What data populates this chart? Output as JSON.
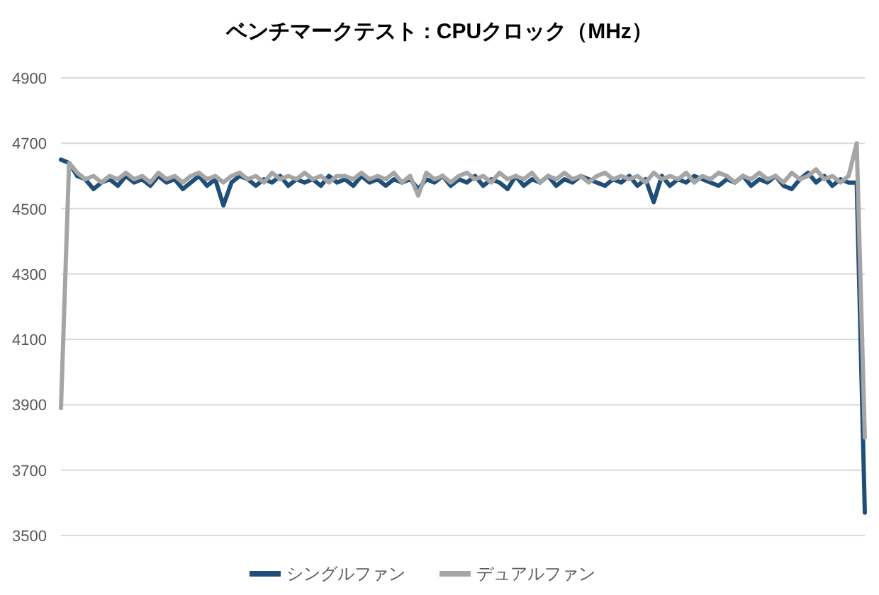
{
  "chart_data": {
    "type": "line",
    "title": "ベンチマークテスト : CPUクロック（MHz）",
    "categories": [
      null,
      null,
      null,
      null,
      null,
      null,
      null,
      null,
      null,
      null,
      null,
      null,
      null,
      null,
      null,
      null,
      null,
      null,
      null,
      null,
      null,
      null,
      null,
      null,
      null,
      null,
      null,
      null,
      null,
      null,
      null,
      null,
      null,
      null,
      null,
      null,
      null,
      null,
      null,
      null,
      null,
      null,
      null,
      null,
      null,
      null,
      null,
      null,
      null,
      null,
      null,
      null,
      null,
      null,
      null,
      null,
      null,
      null,
      null,
      null,
      null,
      null,
      null,
      null,
      null,
      null,
      null,
      null,
      null,
      null,
      null,
      null,
      null,
      null,
      null,
      null,
      null,
      null,
      null,
      null,
      null,
      null,
      null,
      null,
      null,
      null,
      null,
      null,
      null,
      null,
      null,
      null,
      null,
      null,
      null,
      null,
      null,
      null,
      null,
      null
    ],
    "series": [
      {
        "name": "シングルファン",
        "color": "#1f4e79",
        "values": [
          4650,
          4640,
          4600,
          4590,
          4560,
          4580,
          4590,
          4570,
          4600,
          4580,
          4590,
          4570,
          4600,
          4580,
          4590,
          4560,
          4580,
          4600,
          4570,
          4590,
          4510,
          4580,
          4600,
          4590,
          4570,
          4590,
          4580,
          4600,
          4570,
          4590,
          4580,
          4590,
          4570,
          4600,
          4580,
          4590,
          4570,
          4600,
          4580,
          4590,
          4570,
          4590,
          4580,
          4590,
          4560,
          4590,
          4580,
          4600,
          4570,
          4590,
          4580,
          4600,
          4570,
          4590,
          4580,
          4560,
          4600,
          4570,
          4590,
          4580,
          4600,
          4570,
          4590,
          4580,
          4600,
          4590,
          4580,
          4570,
          4590,
          4580,
          4600,
          4570,
          4590,
          4520,
          4600,
          4570,
          4590,
          4580,
          4600,
          4590,
          4580,
          4570,
          4590,
          4580,
          4600,
          4570,
          4590,
          4580,
          4600,
          4570,
          4560,
          4590,
          4610,
          4580,
          4600,
          4570,
          4590,
          4580,
          4580,
          3570
        ]
      },
      {
        "name": "デュアルファン",
        "color": "#a5a5a5",
        "values": [
          3890,
          4640,
          4610,
          4590,
          4600,
          4580,
          4600,
          4590,
          4610,
          4590,
          4600,
          4580,
          4610,
          4590,
          4600,
          4580,
          4600,
          4610,
          4590,
          4600,
          4580,
          4600,
          4610,
          4590,
          4600,
          4580,
          4610,
          4590,
          4600,
          4590,
          4610,
          4590,
          4600,
          4580,
          4600,
          4600,
          4590,
          4610,
          4590,
          4600,
          4590,
          4610,
          4580,
          4600,
          4540,
          4610,
          4590,
          4600,
          4580,
          4600,
          4610,
          4590,
          4600,
          4580,
          4610,
          4590,
          4600,
          4590,
          4610,
          4580,
          4600,
          4590,
          4610,
          4590,
          4600,
          4580,
          4600,
          4610,
          4590,
          4600,
          4590,
          4600,
          4580,
          4610,
          4590,
          4600,
          4590,
          4610,
          4580,
          4600,
          4590,
          4610,
          4600,
          4580,
          4600,
          4590,
          4610,
          4590,
          4600,
          4580,
          4610,
          4590,
          4600,
          4620,
          4590,
          4600,
          4580,
          4600,
          4700,
          3800
        ]
      }
    ],
    "ylim": [
      3500,
      4900
    ],
    "yticks": [
      3500,
      3700,
      3900,
      4100,
      4300,
      4500,
      4700,
      4900
    ],
    "grid": "y",
    "legend": "bottom",
    "tick_labels": "y"
  }
}
